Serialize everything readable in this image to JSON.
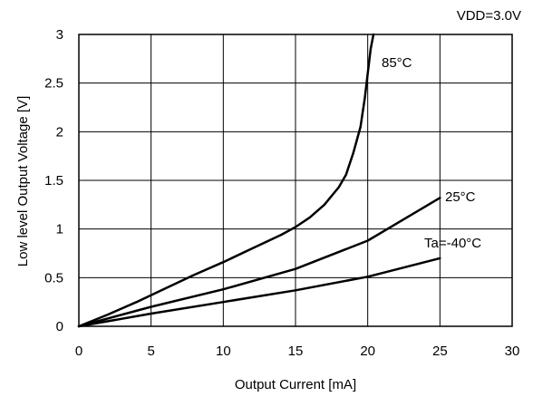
{
  "chart_data": {
    "type": "line",
    "title": "",
    "annotation": "VDD=3.0V",
    "xlabel": "Output Current [mA]",
    "ylabel": "Low level Output Voltage [V]",
    "xlim": [
      0,
      30
    ],
    "ylim": [
      0,
      3
    ],
    "x_ticks": [
      "0",
      "5",
      "10",
      "15",
      "20",
      "25",
      "30"
    ],
    "y_ticks": [
      "0",
      "0.5",
      "1",
      "1.5",
      "2",
      "2.5",
      "3"
    ],
    "grid": true,
    "legend": "none",
    "series": [
      {
        "name": "85°C",
        "x": [
          0,
          2,
          4,
          6,
          8,
          10,
          12,
          14,
          15,
          16,
          17,
          18,
          18.5,
          19,
          19.5,
          19.8,
          20.0,
          20.2,
          20.4
        ],
        "y": [
          0,
          0.12,
          0.25,
          0.39,
          0.53,
          0.66,
          0.8,
          0.94,
          1.02,
          1.12,
          1.25,
          1.43,
          1.56,
          1.78,
          2.05,
          2.35,
          2.6,
          2.85,
          3.0
        ]
      },
      {
        "name": "25°C",
        "x": [
          0,
          5,
          10,
          15,
          20,
          25
        ],
        "y": [
          0,
          0.2,
          0.38,
          0.59,
          0.88,
          1.32
        ]
      },
      {
        "name": "Ta=-40°C",
        "x": [
          0,
          5,
          10,
          15,
          20,
          25
        ],
        "y": [
          0,
          0.13,
          0.25,
          0.37,
          0.51,
          0.7
        ]
      }
    ]
  }
}
